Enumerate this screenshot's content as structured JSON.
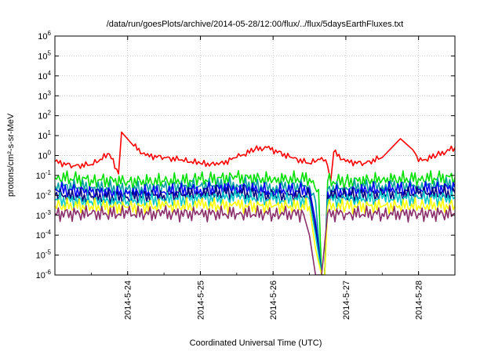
{
  "chart_data": {
    "type": "line",
    "title": "/data/run/goesPlots/archive/2014-05-28/12:00/flux/../flux/5daysEarthFluxes.txt",
    "xlabel": "Coordinated Universal Time (UTC)",
    "ylabel": "protons/cm²-s-sr-MeV",
    "yscale": "log",
    "ylim": [
      1e-06,
      1000000.0
    ],
    "xlim": [
      "2014-05-23 00:00",
      "2014-05-28 12:00"
    ],
    "grid": true,
    "x_ticks": [
      "2014-5-24",
      "2014-5-25",
      "2014-5-26",
      "2014-5-27",
      "2014-5-28"
    ],
    "y_ticks": [
      {
        "base": "10",
        "exp": "-6"
      },
      {
        "base": "10",
        "exp": "-5"
      },
      {
        "base": "10",
        "exp": "-4"
      },
      {
        "base": "10",
        "exp": "-3"
      },
      {
        "base": "10",
        "exp": "-2"
      },
      {
        "base": "10",
        "exp": "-1"
      },
      {
        "base": "10",
        "exp": "0"
      },
      {
        "base": "10",
        "exp": "1"
      },
      {
        "base": "10",
        "exp": "2"
      },
      {
        "base": "10",
        "exp": "3"
      },
      {
        "base": "10",
        "exp": "4"
      },
      {
        "base": "10",
        "exp": "5"
      },
      {
        "base": "10",
        "exp": "6"
      }
    ],
    "colors": {
      "red": "#ff0000",
      "green": "#00e000",
      "teal": "#00a0a0",
      "blue": "#0000ff",
      "navy": "#000080",
      "cyan": "#00c8c8",
      "yellow": "#ffff00",
      "purple": "#8b2f6b"
    },
    "series": [
      {
        "color": "red",
        "points": [
          [
            "2014-05-23 00:00",
            0.5
          ],
          [
            "2014-05-23 06:00",
            0.3
          ],
          [
            "2014-05-23 12:00",
            0.35
          ],
          [
            "2014-05-23 18:00",
            1.2
          ],
          [
            "2014-05-23 21:00",
            0.12
          ],
          [
            "2014-05-23 22:00",
            15
          ],
          [
            "2014-05-24 02:00",
            3
          ],
          [
            "2014-05-24 06:00",
            1
          ],
          [
            "2014-05-24 12:00",
            0.8
          ],
          [
            "2014-05-24 18:00",
            0.6
          ],
          [
            "2014-05-25 00:00",
            0.4
          ],
          [
            "2014-05-25 06:00",
            0.35
          ],
          [
            "2014-05-25 12:00",
            0.8
          ],
          [
            "2014-05-25 18:00",
            2
          ],
          [
            "2014-05-25 22:00",
            2.5
          ],
          [
            "2014-05-26 06:00",
            0.8
          ],
          [
            "2014-05-26 12:00",
            0.4
          ],
          [
            "2014-05-26 16:00",
            0.8
          ],
          [
            "2014-05-26 18:00",
            0.3
          ],
          [
            "2014-05-26 19:00",
            0.05
          ],
          [
            "2014-05-26 20:00",
            1.5
          ],
          [
            "2014-05-27 00:00",
            0.5
          ],
          [
            "2014-05-27 06:00",
            0.4
          ],
          [
            "2014-05-27 12:00",
            0.8
          ],
          [
            "2014-05-27 18:00",
            7
          ],
          [
            "2014-05-27 22:00",
            2
          ],
          [
            "2014-05-28 00:00",
            0.5
          ],
          [
            "2014-05-28 06:00",
            1
          ],
          [
            "2014-05-28 12:00",
            2.5
          ]
        ]
      },
      {
        "color": "green",
        "points": [
          [
            "2014-05-23 00:00",
            0.08
          ],
          [
            "2014-05-23 12:00",
            0.06
          ],
          [
            "2014-05-24 00:00",
            0.05
          ],
          [
            "2014-05-24 12:00",
            0.05
          ],
          [
            "2014-05-25 00:00",
            0.06
          ],
          [
            "2014-05-25 12:00",
            0.08
          ],
          [
            "2014-05-26 00:00",
            0.06
          ],
          [
            "2014-05-26 12:00",
            0.07
          ],
          [
            "2014-05-26 15:00",
            0.02
          ],
          [
            "2014-05-26 16:00",
            1e-06
          ],
          [
            "2014-05-26 17:00",
            1e-06
          ],
          [
            "2014-05-26 18:00",
            0.05
          ],
          [
            "2014-05-27 00:00",
            0.05
          ],
          [
            "2014-05-27 12:00",
            0.06
          ],
          [
            "2014-05-28 00:00",
            0.07
          ],
          [
            "2014-05-28 12:00",
            0.08
          ]
        ]
      },
      {
        "color": "teal",
        "points": [
          [
            "2014-05-23 00:00",
            0.03
          ],
          [
            "2014-05-23 12:00",
            0.025
          ],
          [
            "2014-05-24 00:00",
            0.02
          ],
          [
            "2014-05-24 12:00",
            0.025
          ],
          [
            "2014-05-25 00:00",
            0.03
          ],
          [
            "2014-05-25 12:00",
            0.035
          ],
          [
            "2014-05-26 00:00",
            0.025
          ],
          [
            "2014-05-26 12:00",
            0.03
          ],
          [
            "2014-05-26 14:00",
            0.005
          ],
          [
            "2014-05-26 16:00",
            1e-06
          ],
          [
            "2014-05-26 17:00",
            1e-06
          ],
          [
            "2014-05-26 18:00",
            0.02
          ],
          [
            "2014-05-27 00:00",
            0.025
          ],
          [
            "2014-05-27 12:00",
            0.03
          ],
          [
            "2014-05-28 00:00",
            0.03
          ],
          [
            "2014-05-28 12:00",
            0.035
          ]
        ]
      },
      {
        "color": "blue",
        "points": [
          [
            "2014-05-23 00:00",
            0.02
          ],
          [
            "2014-05-23 12:00",
            0.015
          ],
          [
            "2014-05-24 00:00",
            0.012
          ],
          [
            "2014-05-24 12:00",
            0.015
          ],
          [
            "2014-05-25 00:00",
            0.02
          ],
          [
            "2014-05-25 12:00",
            0.025
          ],
          [
            "2014-05-26 00:00",
            0.015
          ],
          [
            "2014-05-26 12:00",
            0.02
          ],
          [
            "2014-05-26 14:00",
            0.0005
          ],
          [
            "2014-05-26 16:00",
            1e-06
          ],
          [
            "2014-05-26 17:00",
            1e-06
          ],
          [
            "2014-05-26 18:00",
            0.015
          ],
          [
            "2014-05-27 00:00",
            0.015
          ],
          [
            "2014-05-27 12:00",
            0.02
          ],
          [
            "2014-05-28 00:00",
            0.02
          ],
          [
            "2014-05-28 12:00",
            0.025
          ]
        ]
      },
      {
        "color": "navy",
        "points": [
          [
            "2014-05-23 00:00",
            0.01
          ],
          [
            "2014-05-23 12:00",
            0.008
          ],
          [
            "2014-05-24 00:00",
            0.008
          ],
          [
            "2014-05-24 12:00",
            0.01
          ],
          [
            "2014-05-25 00:00",
            0.012
          ],
          [
            "2014-05-25 12:00",
            0.014
          ],
          [
            "2014-05-26 00:00",
            0.009
          ],
          [
            "2014-05-26 12:00",
            0.01
          ],
          [
            "2014-05-26 14:00",
            0.0002
          ],
          [
            "2014-05-26 16:00",
            1e-06
          ],
          [
            "2014-05-26 17:00",
            1e-06
          ],
          [
            "2014-05-26 18:00",
            0.01
          ],
          [
            "2014-05-27 00:00",
            0.009
          ],
          [
            "2014-05-27 12:00",
            0.011
          ],
          [
            "2014-05-28 00:00",
            0.012
          ],
          [
            "2014-05-28 12:00",
            0.013
          ]
        ]
      },
      {
        "color": "cyan",
        "points": [
          [
            "2014-05-23 00:00",
            0.006
          ],
          [
            "2014-05-23 12:00",
            0.005
          ],
          [
            "2014-05-24 00:00",
            0.005
          ],
          [
            "2014-05-24 12:00",
            0.006
          ],
          [
            "2014-05-25 00:00",
            0.007
          ],
          [
            "2014-05-25 12:00",
            0.008
          ],
          [
            "2014-05-26 00:00",
            0.006
          ],
          [
            "2014-05-26 12:00",
            0.006
          ],
          [
            "2014-05-26 14:00",
            0.0001
          ],
          [
            "2014-05-26 16:00",
            1e-06
          ],
          [
            "2014-05-26 17:00",
            1e-06
          ],
          [
            "2014-05-26 18:00",
            0.006
          ],
          [
            "2014-05-27 00:00",
            0.006
          ],
          [
            "2014-05-27 12:00",
            0.007
          ],
          [
            "2014-05-28 00:00",
            0.007
          ],
          [
            "2014-05-28 12:00",
            0.008
          ]
        ]
      },
      {
        "color": "yellow",
        "points": [
          [
            "2014-05-23 00:00",
            0.003
          ],
          [
            "2014-05-23 12:00",
            0.0028
          ],
          [
            "2014-05-24 00:00",
            0.0025
          ],
          [
            "2014-05-24 12:00",
            0.0028
          ],
          [
            "2014-05-25 00:00",
            0.003
          ],
          [
            "2014-05-25 12:00",
            0.003
          ],
          [
            "2014-05-26 00:00",
            0.0028
          ],
          [
            "2014-05-26 12:00",
            0.0028
          ],
          [
            "2014-05-26 14:00",
            2e-05
          ],
          [
            "2014-05-26 16:00",
            1e-06
          ],
          [
            "2014-05-26 17:00",
            1e-06
          ],
          [
            "2014-05-26 18:00",
            0.0025
          ],
          [
            "2014-05-27 00:00",
            0.0028
          ],
          [
            "2014-05-27 12:00",
            0.0028
          ],
          [
            "2014-05-28 00:00",
            0.003
          ],
          [
            "2014-05-28 12:00",
            0.003
          ]
        ]
      },
      {
        "color": "purple",
        "points": [
          [
            "2014-05-23 00:00",
            0.0012
          ],
          [
            "2014-05-23 12:00",
            0.0012
          ],
          [
            "2014-05-24 00:00",
            0.0012
          ],
          [
            "2014-05-24 12:00",
            0.0012
          ],
          [
            "2014-05-25 00:00",
            0.0012
          ],
          [
            "2014-05-25 12:00",
            0.0012
          ],
          [
            "2014-05-26 00:00",
            0.0012
          ],
          [
            "2014-05-26 10:00",
            0.0012
          ],
          [
            "2014-05-26 12:00",
            0.0001
          ],
          [
            "2014-05-26 14:00",
            1e-06
          ],
          [
            "2014-05-26 16:00",
            1e-06
          ],
          [
            "2014-05-26 18:00",
            0.0012
          ],
          [
            "2014-05-27 00:00",
            0.0012
          ],
          [
            "2014-05-27 12:00",
            0.0012
          ],
          [
            "2014-05-28 00:00",
            0.0012
          ],
          [
            "2014-05-28 12:00",
            0.0012
          ]
        ]
      }
    ]
  }
}
